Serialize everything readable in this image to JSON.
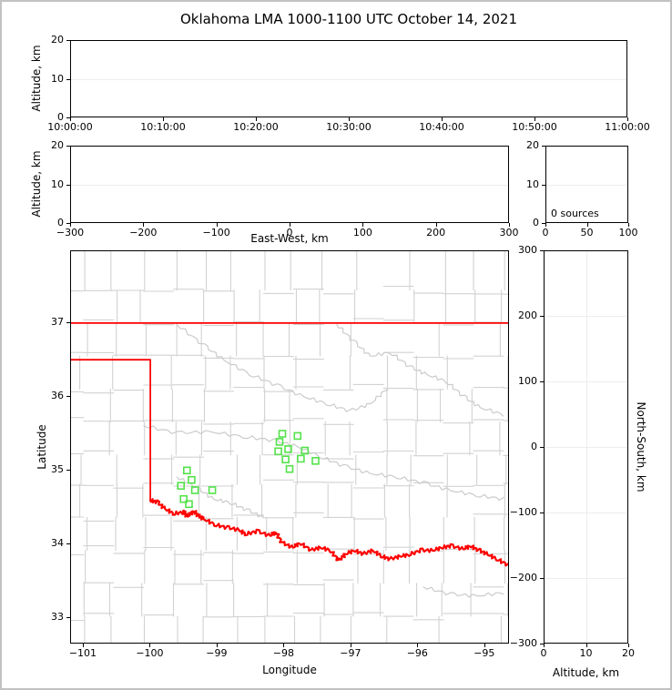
{
  "title": "Oklahoma LMA 1000-1100 UTC October 14, 2021",
  "colors": {
    "station_marker": "#53e24a",
    "state_border": "#ff0000",
    "county_line": "#d2d2d2",
    "river_line": "#cbcbcb",
    "grid_line": "#ededed",
    "axis_frame": "#000000",
    "outer_border": "#c2c2c2"
  },
  "panels": {
    "time_height": {
      "ylabel": "Altitude, km",
      "ylim": [
        0,
        20
      ],
      "yticks": [
        0,
        10,
        20
      ],
      "xticks": [
        "10:00:00",
        "10:10:00",
        "10:20:00",
        "10:30:00",
        "10:40:00",
        "10:50:00",
        "11:00:00"
      ],
      "grid_y": [
        10
      ]
    },
    "ew_height": {
      "xlabel": "East-West, km",
      "ylabel": "Altitude, km",
      "xlim": [
        -300,
        300
      ],
      "xticks": [
        -300,
        -200,
        -100,
        0,
        100,
        200,
        300
      ],
      "ylim": [
        0,
        20
      ],
      "yticks": [
        0,
        10,
        20
      ],
      "grid_y": [
        10
      ]
    },
    "histogram": {
      "annotation": "0 sources",
      "xlim": [
        0,
        100
      ],
      "xticks": [
        0,
        50,
        100
      ],
      "ylim": [
        0,
        20
      ],
      "yticks": [
        0,
        10,
        20
      ],
      "grid_y": [
        10
      ]
    },
    "map": {
      "xlabel": "Longitude",
      "ylabel": "Latitude",
      "xlim": [
        -101.19,
        -94.63
      ],
      "xticks": [
        -101,
        -100,
        -99,
        -98,
        -97,
        -96,
        -95
      ],
      "ylim": [
        32.64,
        37.98
      ],
      "yticks": [
        33,
        34,
        35,
        36,
        37
      ]
    },
    "ns_height": {
      "xlabel": "Altitude, km",
      "ylabel_right": "North-South, km",
      "xlim": [
        0,
        20
      ],
      "xticks": [
        0,
        10,
        20
      ],
      "ylim": [
        -300,
        300
      ],
      "yticks": [
        -300,
        -200,
        -100,
        0,
        100,
        200,
        300
      ],
      "grid_y": [
        -200,
        -100,
        0,
        100,
        200
      ],
      "grid_x": [
        10
      ]
    }
  },
  "map_layers": {
    "county_lons": [
      -101.0,
      -100.55,
      -100.1,
      -99.65,
      -99.2,
      -98.75,
      -98.3,
      -97.85,
      -97.4,
      -96.95,
      -96.5,
      -96.05,
      -95.6,
      -95.15,
      -94.7
    ],
    "county_lats": [
      33.0,
      33.45,
      33.9,
      34.35,
      34.8,
      35.2,
      35.65,
      36.1,
      36.55,
      37.0,
      37.45
    ],
    "rivers": [
      [
        [
          -99.6,
          36.98
        ],
        [
          -99.2,
          36.7
        ],
        [
          -98.9,
          36.5
        ],
        [
          -98.5,
          36.3
        ],
        [
          -98.1,
          36.15
        ],
        [
          -97.7,
          36.0
        ],
        [
          -97.35,
          35.9
        ],
        [
          -97.0,
          35.8
        ],
        [
          -96.7,
          35.9
        ],
        [
          -96.45,
          36.1
        ]
      ],
      [
        [
          -97.2,
          36.98
        ],
        [
          -96.95,
          36.75
        ],
        [
          -96.7,
          36.55
        ],
        [
          -96.4,
          36.6
        ],
        [
          -96.1,
          36.4
        ],
        [
          -95.85,
          36.3
        ],
        [
          -95.55,
          36.2
        ],
        [
          -95.3,
          36.0
        ],
        [
          -95.05,
          35.85
        ],
        [
          -94.7,
          35.75
        ]
      ],
      [
        [
          -100.1,
          35.6
        ],
        [
          -99.6,
          35.5
        ],
        [
          -99.1,
          35.52
        ],
        [
          -98.6,
          35.45
        ],
        [
          -98.15,
          35.4
        ],
        [
          -97.8,
          35.32
        ],
        [
          -97.45,
          35.18
        ],
        [
          -97.1,
          35.05
        ],
        [
          -96.7,
          34.95
        ],
        [
          -96.3,
          34.9
        ],
        [
          -95.9,
          34.82
        ],
        [
          -95.5,
          34.72
        ],
        [
          -95.1,
          34.65
        ],
        [
          -94.7,
          34.6
        ]
      ],
      [
        [
          -99.6,
          34.9
        ],
        [
          -99.3,
          34.75
        ],
        [
          -99.05,
          34.6
        ],
        [
          -98.8,
          34.55
        ],
        [
          -98.55,
          34.45
        ],
        [
          -98.3,
          34.35
        ]
      ],
      [
        [
          -95.9,
          33.4
        ],
        [
          -95.5,
          33.3
        ],
        [
          -95.1,
          33.28
        ],
        [
          -94.7,
          33.32
        ]
      ]
    ],
    "state_border": [
      {
        "wiggle": false,
        "points": [
          [
            -101.19,
            37.0
          ],
          [
            -94.63,
            37.0
          ]
        ]
      },
      {
        "wiggle": false,
        "points": [
          [
            -101.19,
            36.5
          ],
          [
            -100.0,
            36.5
          ],
          [
            -100.0,
            34.58
          ]
        ]
      },
      {
        "wiggle": true,
        "points": [
          [
            -100.0,
            34.58
          ],
          [
            -99.9,
            34.56
          ],
          [
            -99.78,
            34.47
          ],
          [
            -99.65,
            34.4
          ],
          [
            -99.5,
            34.42
          ],
          [
            -99.44,
            34.36
          ],
          [
            -99.35,
            34.44
          ],
          [
            -99.28,
            34.37
          ],
          [
            -99.2,
            34.33
          ],
          [
            -99.03,
            34.25
          ],
          [
            -98.85,
            34.21
          ],
          [
            -98.67,
            34.18
          ],
          [
            -98.57,
            34.12
          ],
          [
            -98.4,
            34.16
          ],
          [
            -98.2,
            34.1
          ],
          [
            -98.12,
            34.15
          ],
          [
            -98.02,
            34.0
          ],
          [
            -97.86,
            33.94
          ],
          [
            -97.76,
            34.0
          ],
          [
            -97.58,
            33.9
          ],
          [
            -97.45,
            33.94
          ],
          [
            -97.3,
            33.9
          ],
          [
            -97.17,
            33.76
          ],
          [
            -97.07,
            33.85
          ],
          [
            -96.94,
            33.9
          ],
          [
            -96.8,
            33.85
          ],
          [
            -96.66,
            33.9
          ],
          [
            -96.53,
            33.82
          ],
          [
            -96.4,
            33.78
          ],
          [
            -96.25,
            33.82
          ],
          [
            -96.12,
            33.84
          ],
          [
            -95.94,
            33.9
          ],
          [
            -95.76,
            33.9
          ],
          [
            -95.62,
            33.94
          ],
          [
            -95.49,
            33.96
          ],
          [
            -95.3,
            33.92
          ],
          [
            -95.2,
            33.96
          ],
          [
            -95.07,
            33.9
          ],
          [
            -94.94,
            33.85
          ],
          [
            -94.8,
            33.78
          ],
          [
            -94.63,
            33.7
          ]
        ]
      }
    ],
    "stations": [
      [
        -98.02,
        35.49
      ],
      [
        -97.79,
        35.46
      ],
      [
        -98.06,
        35.38
      ],
      [
        -97.93,
        35.28
      ],
      [
        -98.08,
        35.25
      ],
      [
        -97.68,
        35.26
      ],
      [
        -97.74,
        35.15
      ],
      [
        -97.97,
        35.14
      ],
      [
        -97.52,
        35.12
      ],
      [
        -97.91,
        35.01
      ],
      [
        -99.45,
        34.99
      ],
      [
        -99.38,
        34.86
      ],
      [
        -99.54,
        34.78
      ],
      [
        -99.33,
        34.72
      ],
      [
        -99.07,
        34.72
      ],
      [
        -99.5,
        34.6
      ],
      [
        -99.42,
        34.53
      ]
    ]
  },
  "chart_data": [
    {
      "type": "scatter",
      "panel": "altitude-vs-time",
      "title": "Oklahoma LMA 1000-1100 UTC October 14, 2021",
      "xtick_labels": [
        "10:00:00",
        "10:10:00",
        "10:20:00",
        "10:30:00",
        "10:40:00",
        "10:50:00",
        "11:00:00"
      ],
      "ylabel": "Altitude, km",
      "ylim": [
        0,
        20
      ],
      "points": []
    },
    {
      "type": "scatter",
      "panel": "altitude-vs-east-west",
      "xlabel": "East-West, km",
      "xlim": [
        -300,
        300
      ],
      "ylabel": "Altitude, km",
      "ylim": [
        0,
        20
      ],
      "points": []
    },
    {
      "type": "histogram",
      "panel": "source-count-vs-altitude",
      "annotation": "0 sources",
      "xlim": [
        0,
        100
      ],
      "ylim": [
        0,
        20
      ],
      "values": []
    },
    {
      "type": "scatter",
      "panel": "plan-view-map",
      "xlabel": "Longitude",
      "ylabel": "Latitude",
      "xlim": [
        -101.19,
        -94.63
      ],
      "ylim": [
        32.64,
        37.98
      ],
      "lma_source_points": [],
      "station_markers_lon_lat": [
        [
          -98.02,
          35.49
        ],
        [
          -97.79,
          35.46
        ],
        [
          -98.06,
          35.38
        ],
        [
          -97.93,
          35.28
        ],
        [
          -98.08,
          35.25
        ],
        [
          -97.68,
          35.26
        ],
        [
          -97.74,
          35.15
        ],
        [
          -97.97,
          35.14
        ],
        [
          -97.52,
          35.12
        ],
        [
          -97.91,
          35.01
        ],
        [
          -99.45,
          34.99
        ],
        [
          -99.38,
          34.86
        ],
        [
          -99.54,
          34.78
        ],
        [
          -99.33,
          34.72
        ],
        [
          -99.07,
          34.72
        ],
        [
          -99.5,
          34.6
        ],
        [
          -99.42,
          34.53
        ]
      ]
    },
    {
      "type": "scatter",
      "panel": "north-south-vs-altitude",
      "xlabel": "Altitude, km",
      "xlim": [
        0,
        20
      ],
      "ylabel": "North-South, km",
      "ylim": [
        -300,
        300
      ],
      "points": []
    }
  ]
}
